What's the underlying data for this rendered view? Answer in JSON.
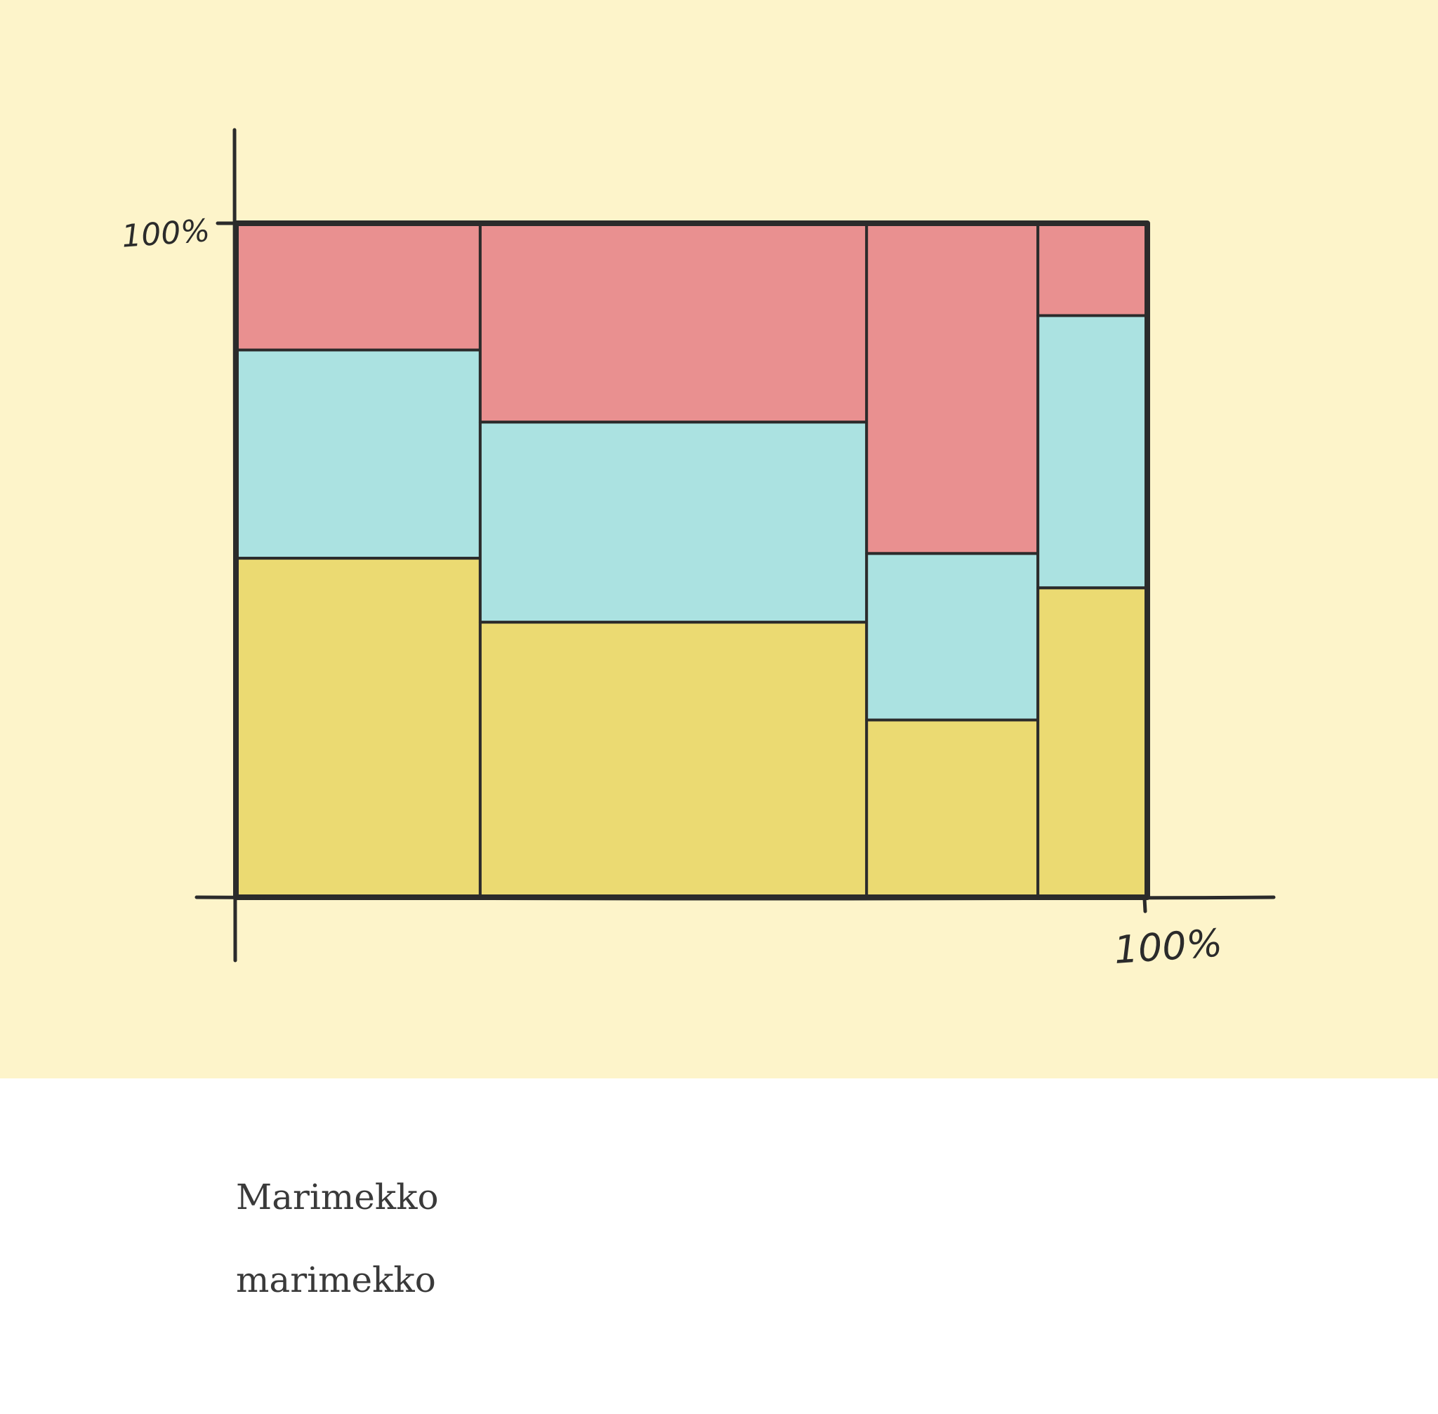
{
  "colors": {
    "background": "#fdf4ca",
    "page": "#ffffff",
    "ink": "#2b2b2b",
    "segments": [
      "#e99090",
      "#abe2e1",
      "#ebda72"
    ]
  },
  "chart_data": {
    "type": "marimekko",
    "title": "",
    "xlabel": "",
    "ylabel": "",
    "y_tick_label": "100%",
    "x_tick_label": "100%",
    "columns": [
      {
        "width_pct": 26.8,
        "segments_pct": [
          18.8,
          30.9,
          50.3
        ]
      },
      {
        "width_pct": 42.4,
        "segments_pct": [
          29.5,
          29.7,
          40.8
        ]
      },
      {
        "width_pct": 18.8,
        "segments_pct": [
          49.0,
          24.7,
          26.3
        ]
      },
      {
        "width_pct": 12.0,
        "segments_pct": [
          13.7,
          40.4,
          45.9
        ]
      }
    ],
    "grid": false,
    "legend": "none"
  },
  "caption": {
    "title": "Marimekko",
    "slug": "marimekko"
  }
}
